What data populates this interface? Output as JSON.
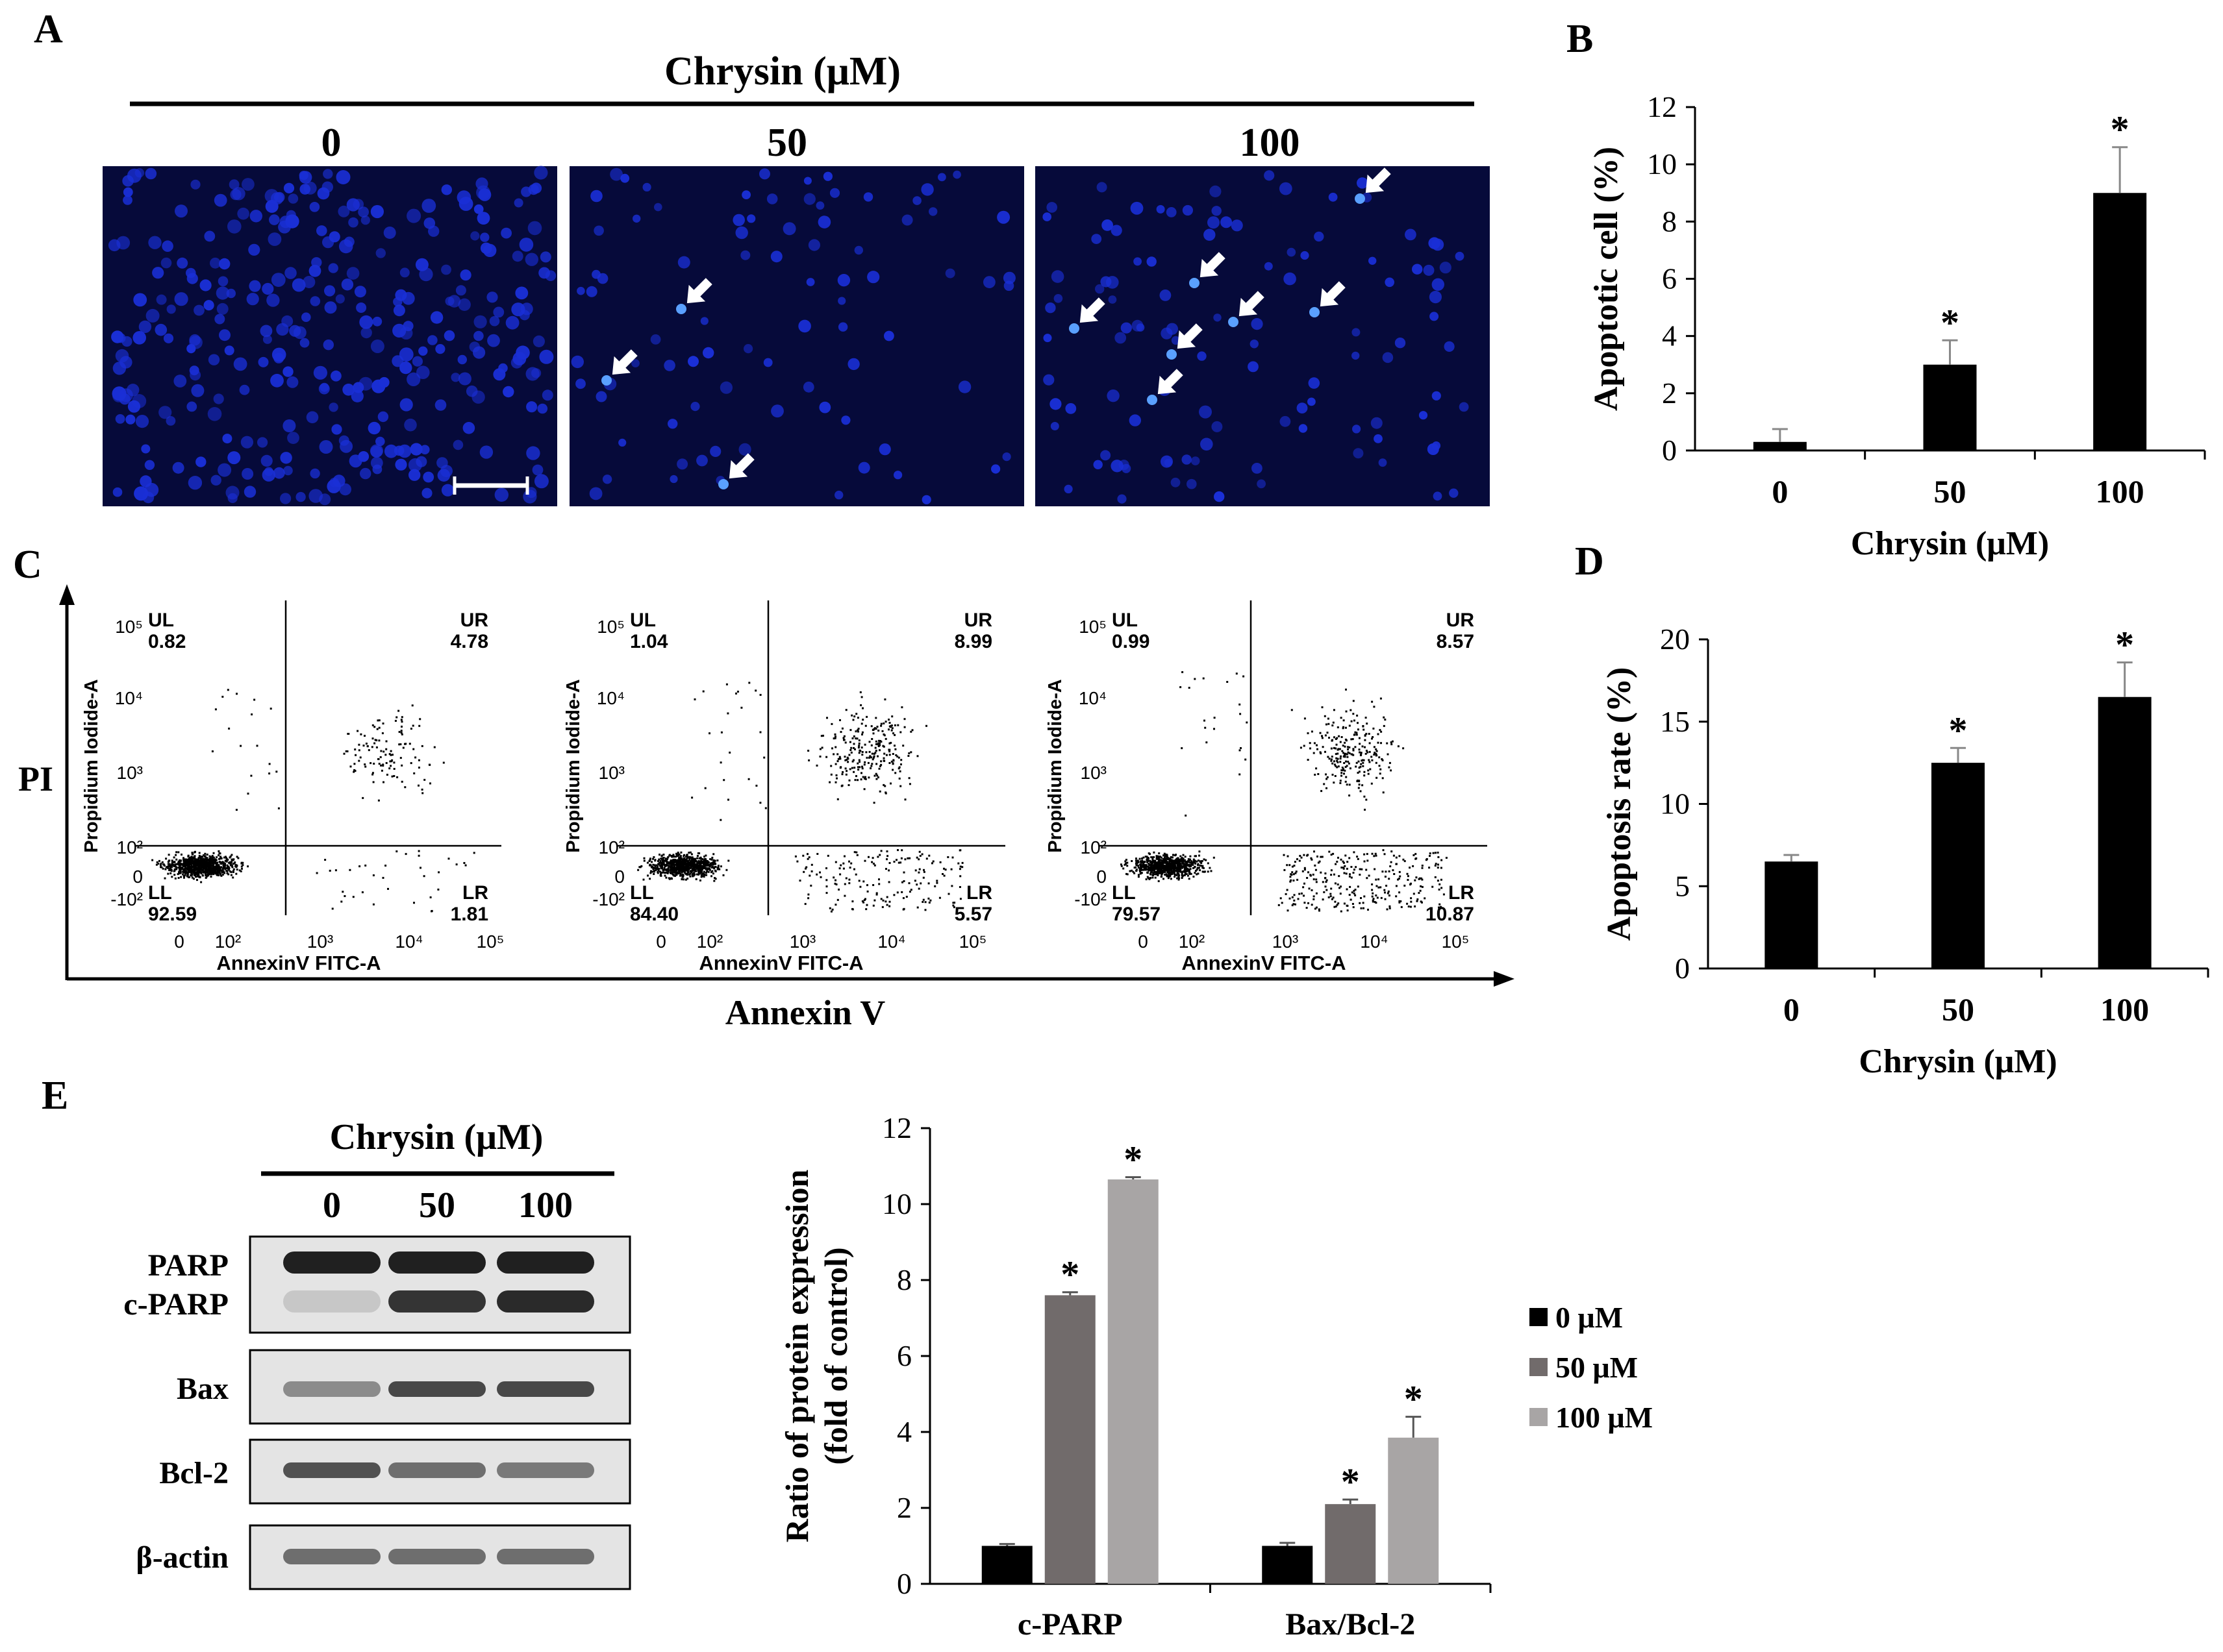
{
  "panel_letters": {
    "a": "A",
    "b": "B",
    "c": "C",
    "d": "D",
    "e": "E"
  },
  "colors": {
    "micro_bg": "#060a3a",
    "nucleus": "#1a2fd6",
    "nucleus_bright": "#5aa0ff",
    "bar_black": "#000000",
    "bar_dark_gray": "#716b6b",
    "bar_light_gray": "#a8a5a5",
    "blot_bg": "#e4e4e4",
    "blot_band": "#202020"
  },
  "panel_a": {
    "treatment_label": "Chrysin (μM)",
    "doses": [
      "0",
      "50",
      "100"
    ],
    "arrow_counts": [
      0,
      3,
      7
    ]
  },
  "panel_c": {
    "y_axis_label": "PI",
    "x_axis_label": "Annexin V",
    "plots": [
      {
        "ul_label": "UL",
        "ul": "0.82",
        "ur_label": "UR",
        "ur": "4.78",
        "ll_label": "LL",
        "ll": "92.59",
        "lr_label": "LR",
        "lr": "1.81",
        "y_title": "Propidium Iodide-A",
        "x_title": "AnnexinV FITC-A",
        "y_ticks": [
          "10⁵",
          "10⁴",
          "10³",
          "10²",
          "0",
          "-10²"
        ],
        "x_ticks": [
          "0",
          "10²",
          "10³",
          "10⁴",
          "10⁵"
        ]
      },
      {
        "ul_label": "UL",
        "ul": "1.04",
        "ur_label": "UR",
        "ur": "8.99",
        "ll_label": "LL",
        "ll": "84.40",
        "lr_label": "LR",
        "lr": "5.57",
        "y_title": "Propidium Iodide-A",
        "x_title": "AnnexinV FITC-A",
        "y_ticks": [
          "10⁵",
          "10⁴",
          "10³",
          "10²",
          "0",
          "-10²"
        ],
        "x_ticks": [
          "0",
          "10²",
          "10³",
          "10⁴",
          "10⁵"
        ]
      },
      {
        "ul_label": "UL",
        "ul": "0.99",
        "ur_label": "UR",
        "ur": "8.57",
        "ll_label": "LL",
        "ll": "79.57",
        "lr_label": "LR",
        "lr": "10.87",
        "y_title": "Propidium Iodide-A",
        "x_title": "AnnexinV FITC-A",
        "y_ticks": [
          "10⁵",
          "10⁴",
          "10³",
          "10²",
          "0",
          "-10²"
        ],
        "x_ticks": [
          "0",
          "10²",
          "10³",
          "10⁴",
          "10⁵"
        ]
      }
    ]
  },
  "panel_e_blot": {
    "treatment_label": "Chrysin (μM)",
    "doses": [
      "0",
      "50",
      "100"
    ],
    "rows": [
      {
        "labels": [
          "PARP",
          "c-PARP"
        ],
        "band_intensity": [
          [
            1.0,
            1.0,
            1.0
          ],
          [
            0.15,
            0.9,
            0.95
          ]
        ]
      },
      {
        "labels": [
          "Bax"
        ],
        "band_intensity": [
          [
            0.45,
            0.8,
            0.8
          ]
        ]
      },
      {
        "labels": [
          "Bcl-2"
        ],
        "band_intensity": [
          [
            0.75,
            0.6,
            0.55
          ]
        ]
      },
      {
        "labels": [
          "β-actin"
        ],
        "band_intensity": [
          [
            0.6,
            0.6,
            0.6
          ]
        ]
      }
    ]
  },
  "chart_data": [
    {
      "id": "B",
      "type": "bar",
      "categories": [
        "0",
        "50",
        "100"
      ],
      "values": [
        0.3,
        3.0,
        9.0
      ],
      "errors": [
        0.45,
        0.85,
        1.6
      ],
      "significance": [
        "",
        "*",
        "*"
      ],
      "xlabel": "Chrysin (μM)",
      "ylabel": "Apoptotic cell (%)",
      "ylim": [
        0,
        12
      ],
      "yticks": [
        "0",
        "2",
        "4",
        "6",
        "8",
        "10",
        "12"
      ]
    },
    {
      "id": "D",
      "type": "bar",
      "categories": [
        "0",
        "50",
        "100"
      ],
      "values": [
        6.5,
        12.5,
        16.5
      ],
      "errors": [
        0.4,
        0.9,
        2.1
      ],
      "significance": [
        "",
        "*",
        "*"
      ],
      "xlabel": "Chrysin (μM)",
      "ylabel": "Apoptosis rate (%)",
      "ylim": [
        0,
        20
      ],
      "yticks": [
        "0",
        "5",
        "10",
        "15",
        "20"
      ]
    },
    {
      "id": "E",
      "type": "bar",
      "categories": [
        "c-PARP",
        "Bax/Bcl-2"
      ],
      "series": [
        {
          "name": "0 μM",
          "values": [
            1.0,
            1.0
          ],
          "errors": [
            0.05,
            0.08
          ],
          "significance": [
            "",
            ""
          ]
        },
        {
          "name": "50 μM",
          "values": [
            7.6,
            2.1
          ],
          "errors": [
            0.08,
            0.12
          ],
          "significance": [
            "*",
            "*"
          ]
        },
        {
          "name": "100 μM",
          "values": [
            10.65,
            3.85
          ],
          "errors": [
            0.06,
            0.55
          ],
          "significance": [
            "*",
            "*"
          ]
        }
      ],
      "ylabel_line1": "Ratio of protein expression",
      "ylabel_line2": "(fold of control)",
      "ylim": [
        0,
        12
      ],
      "yticks": [
        "0",
        "2",
        "4",
        "6",
        "8",
        "10",
        "12"
      ],
      "legend": "right"
    }
  ]
}
